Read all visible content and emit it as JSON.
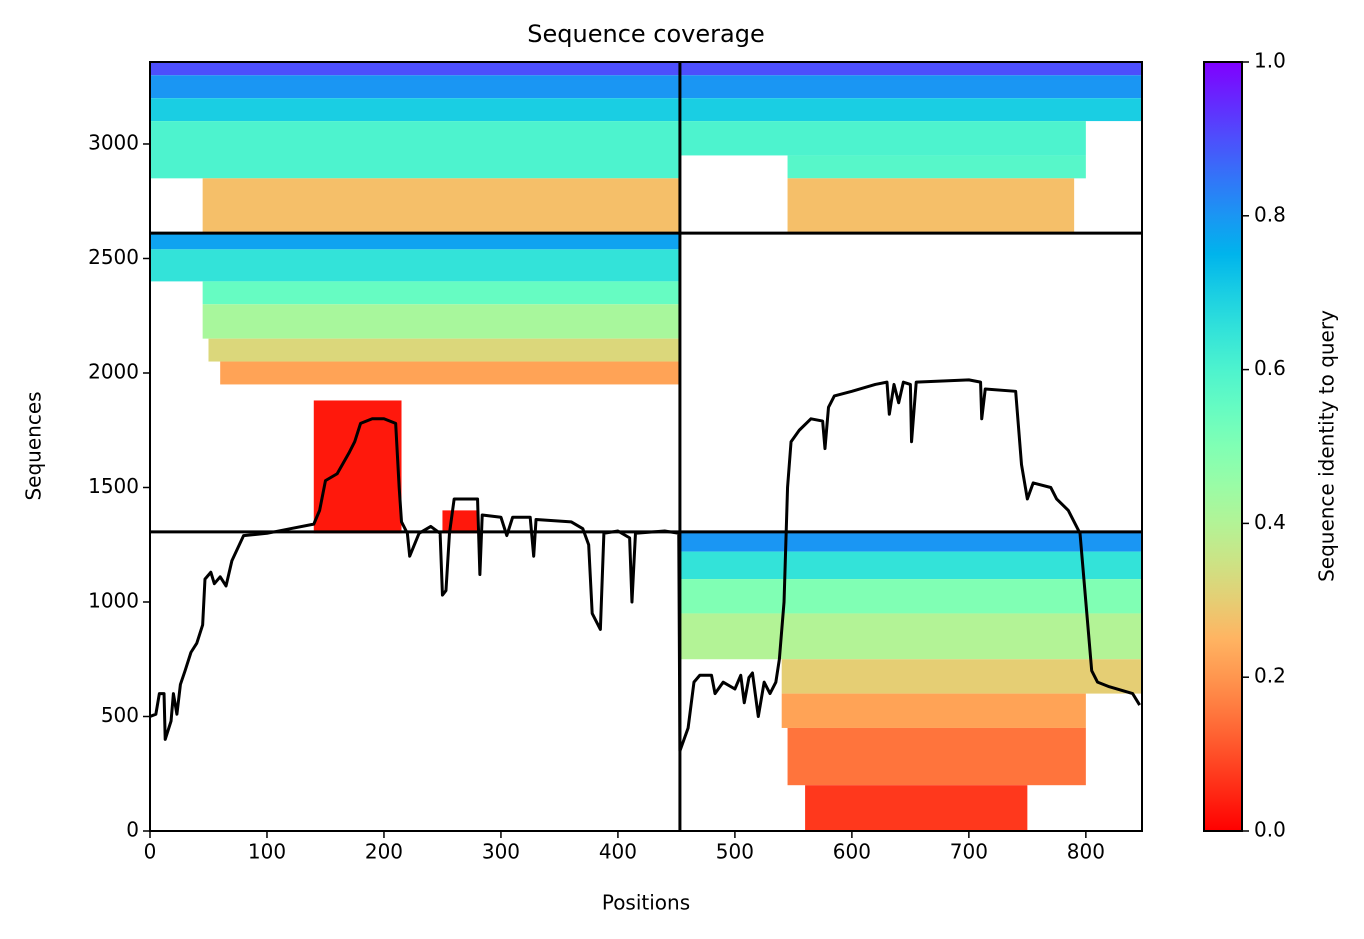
{
  "chart_data": {
    "type": "coverage",
    "title": "Sequence coverage",
    "xlabel": "Positions",
    "ylabel": "Sequences",
    "xlim": [
      0,
      848
    ],
    "ylim": [
      0,
      3358
    ],
    "xticks": [
      0,
      100,
      200,
      300,
      400,
      500,
      600,
      700,
      800
    ],
    "yticks": [
      0,
      500,
      1000,
      1500,
      2000,
      2500,
      3000
    ],
    "colormap": "rainbow_r",
    "clim": [
      0,
      1
    ],
    "colorbar_label": "Sequence identity to query",
    "colorbar_ticks": [
      {
        "value": 0,
        "label": "0.0"
      },
      {
        "value": 0.2,
        "label": "0.2"
      },
      {
        "value": 0.4,
        "label": "0.4"
      },
      {
        "value": 0.6,
        "label": "0.6"
      },
      {
        "value": 0.8,
        "label": "0.8"
      },
      {
        "value": 1,
        "label": "1.0"
      }
    ],
    "boundaries": {
      "x": [
        453
      ],
      "y": [
        1306,
        2611
      ]
    },
    "line_color": "#000000",
    "blocks": [
      {
        "x": [
          0,
          453
        ],
        "y": [
          3300,
          3358
        ],
        "identity": 0.9
      },
      {
        "x": [
          0,
          453
        ],
        "y": [
          3200,
          3300
        ],
        "identity": 0.8
      },
      {
        "x": [
          0,
          453
        ],
        "y": [
          3100,
          3200
        ],
        "identity": 0.7
      },
      {
        "x": [
          0,
          453
        ],
        "y": [
          2850,
          3100
        ],
        "identity": 0.6
      },
      {
        "x": [
          45,
          453
        ],
        "y": [
          2611,
          2850
        ],
        "identity": 0.27
      },
      {
        "x": [
          453,
          848
        ],
        "y": [
          3300,
          3358
        ],
        "identity": 0.9
      },
      {
        "x": [
          453,
          848
        ],
        "y": [
          3200,
          3300
        ],
        "identity": 0.8
      },
      {
        "x": [
          453,
          848
        ],
        "y": [
          3100,
          3200
        ],
        "identity": 0.7
      },
      {
        "x": [
          453,
          800
        ],
        "y": [
          2950,
          3100
        ],
        "identity": 0.6
      },
      {
        "x": [
          545,
          800
        ],
        "y": [
          2850,
          2950
        ],
        "identity": 0.58
      },
      {
        "x": [
          545,
          790
        ],
        "y": [
          2611,
          2850
        ],
        "identity": 0.27
      },
      {
        "x": [
          0,
          453
        ],
        "y": [
          2540,
          2611
        ],
        "identity": 0.78
      },
      {
        "x": [
          0,
          453
        ],
        "y": [
          2400,
          2540
        ],
        "identity": 0.65
      },
      {
        "x": [
          45,
          453
        ],
        "y": [
          2300,
          2400
        ],
        "identity": 0.55
      },
      {
        "x": [
          45,
          453
        ],
        "y": [
          2150,
          2300
        ],
        "identity": 0.42
      },
      {
        "x": [
          50,
          453
        ],
        "y": [
          2050,
          2150
        ],
        "identity": 0.32
      },
      {
        "x": [
          60,
          453
        ],
        "y": [
          1950,
          2050
        ],
        "identity": 0.22
      },
      {
        "x": [
          140,
          215
        ],
        "y": [
          1300,
          1880
        ],
        "identity": 0.03
      },
      {
        "x": [
          250,
          280
        ],
        "y": [
          1300,
          1400
        ],
        "identity": 0.03
      },
      {
        "x": [
          453,
          848
        ],
        "y": [
          1220,
          1304
        ],
        "identity": 0.8
      },
      {
        "x": [
          453,
          848
        ],
        "y": [
          1100,
          1220
        ],
        "identity": 0.65
      },
      {
        "x": [
          453,
          848
        ],
        "y": [
          950,
          1100
        ],
        "identity": 0.5
      },
      {
        "x": [
          453,
          848
        ],
        "y": [
          750,
          950
        ],
        "identity": 0.4
      },
      {
        "x": [
          540,
          848
        ],
        "y": [
          600,
          750
        ],
        "identity": 0.3
      },
      {
        "x": [
          540,
          800
        ],
        "y": [
          450,
          600
        ],
        "identity": 0.22
      },
      {
        "x": [
          545,
          800
        ],
        "y": [
          200,
          450
        ],
        "identity": 0.15
      },
      {
        "x": [
          560,
          750
        ],
        "y": [
          0,
          200
        ],
        "identity": 0.07
      }
    ],
    "coverage": {
      "x": [
        0,
        5,
        8,
        12,
        13,
        18,
        20,
        23,
        26,
        30,
        35,
        40,
        45,
        47,
        52,
        55,
        60,
        65,
        70,
        80,
        100,
        120,
        140,
        145,
        150,
        160,
        170,
        175,
        180,
        190,
        200,
        210,
        213,
        215,
        220,
        222,
        230,
        240,
        248,
        250,
        253,
        256,
        260,
        280,
        282,
        284,
        300,
        305,
        310,
        325,
        328,
        330,
        360,
        370,
        375,
        378,
        385,
        388,
        400,
        410,
        412,
        415,
        440,
        452,
        453,
        460,
        465,
        470,
        480,
        483,
        490,
        500,
        505,
        508,
        512,
        515,
        520,
        525,
        530,
        535,
        538,
        542,
        545,
        548,
        555,
        565,
        575,
        577,
        580,
        585,
        600,
        620,
        630,
        632,
        636,
        640,
        644,
        650,
        651,
        655,
        700,
        710,
        711,
        714,
        740,
        745,
        750,
        755,
        770,
        775,
        785,
        795,
        800,
        805,
        810,
        820,
        840,
        846
      ],
      "y": [
        500,
        510,
        600,
        600,
        400,
        480,
        600,
        510,
        640,
        700,
        780,
        820,
        900,
        1100,
        1130,
        1080,
        1110,
        1070,
        1180,
        1290,
        1300,
        1320,
        1340,
        1400,
        1530,
        1560,
        1650,
        1700,
        1780,
        1800,
        1800,
        1780,
        1500,
        1350,
        1300,
        1200,
        1300,
        1330,
        1300,
        1030,
        1050,
        1300,
        1450,
        1450,
        1120,
        1380,
        1370,
        1290,
        1370,
        1370,
        1200,
        1360,
        1350,
        1320,
        1250,
        950,
        880,
        1300,
        1310,
        1280,
        1000,
        1300,
        1310,
        1300,
        350,
        450,
        650,
        680,
        680,
        600,
        650,
        620,
        680,
        560,
        670,
        690,
        500,
        650,
        600,
        650,
        750,
        1000,
        1500,
        1700,
        1750,
        1800,
        1790,
        1670,
        1850,
        1900,
        1920,
        1950,
        1960,
        1820,
        1950,
        1870,
        1960,
        1950,
        1700,
        1960,
        1970,
        1960,
        1800,
        1930,
        1920,
        1600,
        1450,
        1520,
        1500,
        1450,
        1400,
        1300,
        1000,
        700,
        650,
        630,
        600,
        550
      ]
    }
  }
}
